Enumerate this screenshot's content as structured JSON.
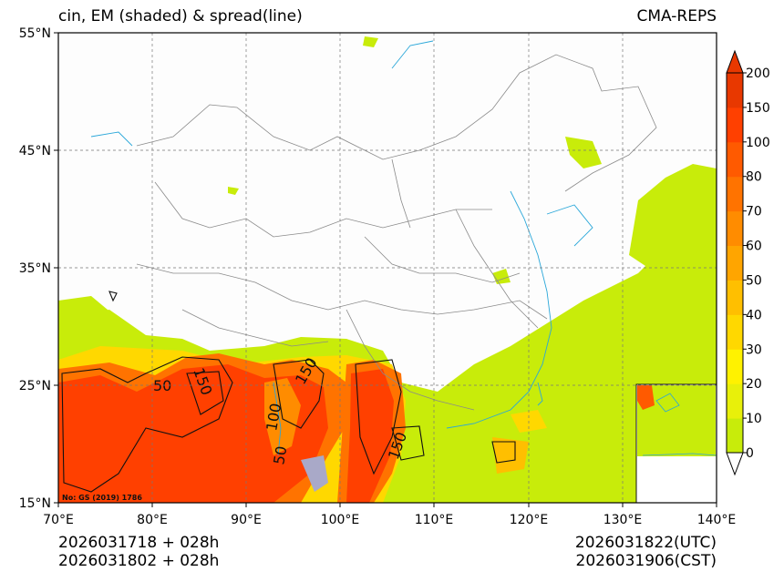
{
  "title_left": "cin, EM (shaded) & spread(line)",
  "title_right": "CMA-REPS",
  "map": {
    "lat_labels": [
      "55°N",
      "45°N",
      "35°N",
      "25°N",
      "15°N"
    ],
    "lon_labels": [
      "70°E",
      "80°E",
      "90°E",
      "100°E",
      "110°E",
      "120°E",
      "130°E",
      "140°E"
    ],
    "lat_range": [
      15,
      55
    ],
    "lon_range": [
      70,
      140
    ],
    "grid_step_deg": 10,
    "contour_labels": [
      "50",
      "150",
      "150",
      "100",
      "50",
      "150"
    ],
    "map_note": "No: GS (2019) 1786"
  },
  "colorbar": {
    "levels": [
      "0",
      "10",
      "20",
      "30",
      "40",
      "50",
      "60",
      "70",
      "80",
      "100",
      "150",
      "200"
    ],
    "colors": [
      "#c8ec0a",
      "#e8f00a",
      "#fff200",
      "#ffd800",
      "#ffbf00",
      "#ffa500",
      "#ff8c00",
      "#ff7300",
      "#ff5a00",
      "#ff4000",
      "#e83800"
    ],
    "under_color": "#ffffff",
    "over_color": "#e83800"
  },
  "footer": {
    "init_line1": "2026031718  +  028h",
    "init_line2": "2026031802  +  028h",
    "valid_utc": "2026031822(UTC)",
    "valid_cst": "2026031906(CST)"
  }
}
